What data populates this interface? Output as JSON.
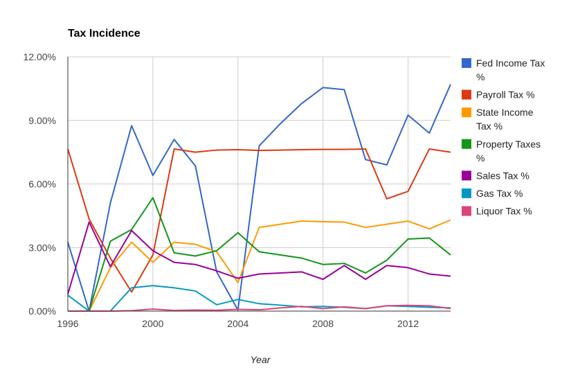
{
  "chart_data": {
    "type": "line",
    "title": "Tax Incidence",
    "xlabel": "Year",
    "ylabel": "",
    "x": [
      1996,
      1997,
      1998,
      1999,
      2000,
      2001,
      2002,
      2003,
      2004,
      2005,
      2006,
      2007,
      2008,
      2009,
      2010,
      2011,
      2012,
      2013,
      2014
    ],
    "x_ticks": [
      "1996",
      "2000",
      "2004",
      "2008",
      "2012"
    ],
    "y_ticks": [
      "0.00%",
      "3.00%",
      "6.00%",
      "9.00%",
      "12.00%"
    ],
    "xlim": [
      1996,
      2014
    ],
    "ylim": [
      0,
      12
    ],
    "grid": true,
    "legend_position": "right",
    "series": [
      {
        "name": "Fed Income Tax %",
        "color": "#3366cc",
        "values": [
          3.25,
          0.0,
          5.1,
          8.75,
          6.4,
          8.1,
          6.85,
          1.85,
          0.05,
          7.8,
          8.85,
          9.8,
          10.55,
          10.45,
          7.15,
          6.9,
          9.25,
          8.4,
          10.7
        ]
      },
      {
        "name": "Payroll Tax %",
        "color": "#dc3912",
        "values": [
          7.65,
          4.35,
          2.5,
          0.9,
          2.65,
          7.65,
          7.5,
          7.6,
          7.62,
          7.58,
          7.6,
          7.62,
          7.63,
          7.63,
          7.65,
          5.3,
          5.65,
          7.65,
          7.5
        ]
      },
      {
        "name": "State Income Tax %",
        "color": "#ff9900",
        "values": [
          0.0,
          0.0,
          2.05,
          3.25,
          2.3,
          3.25,
          3.15,
          2.8,
          1.35,
          3.95,
          4.1,
          4.25,
          4.22,
          4.2,
          3.95,
          4.1,
          4.25,
          3.88,
          4.3
        ]
      },
      {
        "name": "Property Taxes %",
        "color": "#109618",
        "values": [
          0.0,
          0.0,
          3.3,
          3.85,
          5.35,
          2.75,
          2.6,
          2.85,
          3.7,
          2.8,
          2.65,
          2.5,
          2.2,
          2.25,
          1.8,
          2.4,
          3.4,
          3.45,
          2.65
        ]
      },
      {
        "name": "Sales Tax %",
        "color": "#990099",
        "values": [
          0.8,
          4.2,
          2.1,
          3.8,
          2.85,
          2.3,
          2.2,
          1.9,
          1.55,
          1.75,
          1.8,
          1.85,
          1.5,
          2.15,
          1.5,
          2.15,
          2.05,
          1.75,
          1.65
        ]
      },
      {
        "name": "Gas Tax %",
        "color": "#0099c6",
        "values": [
          0.75,
          0.0,
          0.0,
          1.1,
          1.2,
          1.1,
          0.95,
          0.3,
          0.55,
          0.35,
          0.28,
          0.2,
          0.22,
          0.18,
          0.12,
          0.25,
          0.22,
          0.18,
          0.15
        ]
      },
      {
        "name": "Liquor Tax %",
        "color": "#dd4477",
        "values": [
          0.0,
          0.0,
          0.0,
          0.02,
          0.1,
          0.03,
          0.05,
          0.04,
          0.08,
          0.06,
          0.15,
          0.22,
          0.12,
          0.2,
          0.12,
          0.25,
          0.27,
          0.25,
          0.12
        ]
      }
    ]
  }
}
